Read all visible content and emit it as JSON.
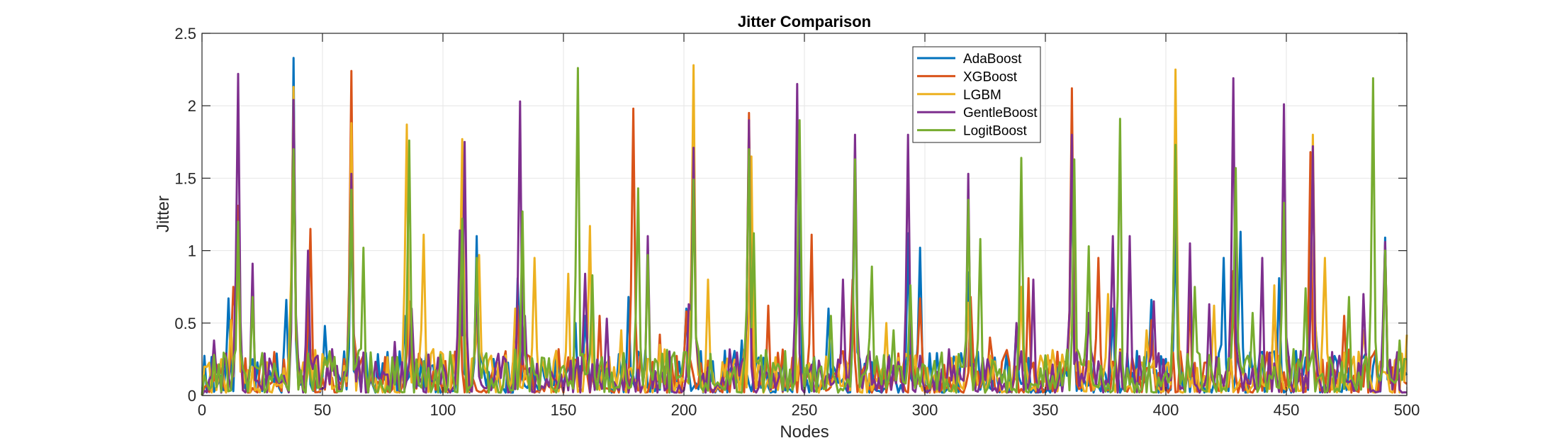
{
  "chart_data": {
    "type": "line",
    "title": "Jitter Comparison",
    "xlabel": "Nodes",
    "ylabel": "Jitter",
    "xlim": [
      0,
      500
    ],
    "ylim": [
      0,
      2.5
    ],
    "xticks": [
      0,
      50,
      100,
      150,
      200,
      250,
      300,
      350,
      400,
      450,
      500
    ],
    "yticks": [
      0,
      0.5,
      1,
      1.5,
      2,
      2.5
    ],
    "xtick_labels": [
      "0",
      "50",
      "100",
      "150",
      "200",
      "250",
      "300",
      "350",
      "400",
      "450",
      "500"
    ],
    "ytick_labels": [
      "0",
      "0.5",
      "1",
      "1.5",
      "2",
      "2.5"
    ],
    "grid": true,
    "legend_position": "top-right",
    "series": [
      {
        "name": "AdaBoost",
        "color": "#0072BD",
        "peaks": [
          [
            11,
            0.67
          ],
          [
            15,
            1.3
          ],
          [
            20,
            0.2
          ],
          [
            31,
            0.29
          ],
          [
            35,
            0.66
          ],
          [
            38,
            2.33
          ],
          [
            44,
            0.55
          ],
          [
            51,
            0.48
          ],
          [
            62,
            1.43
          ],
          [
            77,
            0.3
          ],
          [
            84,
            0.55
          ],
          [
            91,
            0.25
          ],
          [
            108,
            1.2
          ],
          [
            114,
            1.1
          ],
          [
            131,
            0.81
          ],
          [
            155,
            0.5
          ],
          [
            159,
            0.55
          ],
          [
            177,
            0.68
          ],
          [
            201,
            0.6
          ],
          [
            224,
            0.38
          ],
          [
            248,
            1.72
          ],
          [
            260,
            0.6
          ],
          [
            271,
            1.6
          ],
          [
            293,
            1.12
          ],
          [
            298,
            1.02
          ],
          [
            318,
            0.85
          ],
          [
            338,
            0.48
          ],
          [
            361,
            1.6
          ],
          [
            378,
            0.6
          ],
          [
            394,
            0.66
          ],
          [
            404,
            1.15
          ],
          [
            424,
            0.95
          ],
          [
            431,
            1.13
          ],
          [
            447,
            0.81
          ],
          [
            461,
            1.7
          ],
          [
            491,
            1.09
          ]
        ]
      },
      {
        "name": "XGBoost",
        "color": "#D95319",
        "peaks": [
          [
            13,
            0.75
          ],
          [
            15,
            1.31
          ],
          [
            30,
            0.3
          ],
          [
            38,
            2.03
          ],
          [
            45,
            1.15
          ],
          [
            62,
            2.24
          ],
          [
            86,
            0.65
          ],
          [
            107,
            0.85
          ],
          [
            131,
            0.62
          ],
          [
            165,
            0.55
          ],
          [
            179,
            1.98
          ],
          [
            190,
            0.42
          ],
          [
            201,
            0.58
          ],
          [
            227,
            1.95
          ],
          [
            235,
            0.62
          ],
          [
            253,
            1.11
          ],
          [
            270,
            0.8
          ],
          [
            298,
            0.67
          ],
          [
            319,
            0.68
          ],
          [
            327,
            0.4
          ],
          [
            343,
            0.81
          ],
          [
            361,
            2.12
          ],
          [
            372,
            0.95
          ],
          [
            394,
            0.52
          ],
          [
            410,
            0.71
          ],
          [
            428,
            0.86
          ],
          [
            445,
            0.62
          ],
          [
            460,
            1.68
          ],
          [
            474,
            0.55
          ],
          [
            491,
            1.04
          ]
        ]
      },
      {
        "name": "LGBM",
        "color": "#EDB120",
        "peaks": [
          [
            12,
            0.52
          ],
          [
            15,
            0.95
          ],
          [
            38,
            2.13
          ],
          [
            62,
            1.88
          ],
          [
            85,
            1.87
          ],
          [
            92,
            1.11
          ],
          [
            96,
            0.32
          ],
          [
            108,
            1.77
          ],
          [
            115,
            0.97
          ],
          [
            130,
            0.6
          ],
          [
            138,
            0.95
          ],
          [
            152,
            0.84
          ],
          [
            161,
            1.17
          ],
          [
            174,
            0.45
          ],
          [
            190,
            0.35
          ],
          [
            204,
            2.28
          ],
          [
            210,
            0.8
          ],
          [
            228,
            1.65
          ],
          [
            246,
            0.45
          ],
          [
            271,
            1.62
          ],
          [
            284,
            0.5
          ],
          [
            294,
            0.7
          ],
          [
            318,
            0.64
          ],
          [
            340,
            0.75
          ],
          [
            361,
            1.75
          ],
          [
            376,
            0.7
          ],
          [
            392,
            0.45
          ],
          [
            404,
            2.25
          ],
          [
            420,
            0.62
          ],
          [
            445,
            0.76
          ],
          [
            461,
            1.8
          ],
          [
            466,
            0.95
          ],
          [
            482,
            0.45
          ],
          [
            500,
            0.42
          ]
        ]
      },
      {
        "name": "GentleBoost",
        "color": "#7E2F8E",
        "peaks": [
          [
            5,
            0.38
          ],
          [
            15,
            2.22
          ],
          [
            21,
            0.91
          ],
          [
            38,
            2.04
          ],
          [
            44,
            1.0
          ],
          [
            62,
            1.53
          ],
          [
            80,
            0.37
          ],
          [
            87,
            0.6
          ],
          [
            107,
            1.14
          ],
          [
            109,
            1.75
          ],
          [
            114,
            0.75
          ],
          [
            132,
            2.03
          ],
          [
            134,
            0.55
          ],
          [
            159,
            0.84
          ],
          [
            168,
            0.53
          ],
          [
            185,
            1.1
          ],
          [
            202,
            0.63
          ],
          [
            204,
            1.71
          ],
          [
            227,
            1.9
          ],
          [
            247,
            2.15
          ],
          [
            266,
            0.8
          ],
          [
            271,
            1.8
          ],
          [
            293,
            1.8
          ],
          [
            318,
            1.53
          ],
          [
            338,
            0.5
          ],
          [
            345,
            0.8
          ],
          [
            361,
            1.8
          ],
          [
            368,
            0.57
          ],
          [
            378,
            1.1
          ],
          [
            385,
            1.1
          ],
          [
            395,
            0.65
          ],
          [
            404,
            1.56
          ],
          [
            410,
            1.05
          ],
          [
            418,
            0.63
          ],
          [
            428,
            2.19
          ],
          [
            440,
            0.95
          ],
          [
            449,
            2.01
          ],
          [
            461,
            1.72
          ],
          [
            469,
            0.3
          ],
          [
            482,
            0.7
          ],
          [
            491,
            1.06
          ]
        ]
      },
      {
        "name": "LogitBoost",
        "color": "#77AC30",
        "peaks": [
          [
            5,
            0.28
          ],
          [
            15,
            1.2
          ],
          [
            21,
            0.68
          ],
          [
            38,
            1.7
          ],
          [
            62,
            1.42
          ],
          [
            67,
            1.02
          ],
          [
            86,
            1.76
          ],
          [
            108,
            1.22
          ],
          [
            114,
            0.95
          ],
          [
            133,
            1.27
          ],
          [
            156,
            2.26
          ],
          [
            162,
            0.83
          ],
          [
            181,
            1.43
          ],
          [
            185,
            0.97
          ],
          [
            204,
            1.49
          ],
          [
            227,
            1.7
          ],
          [
            229,
            1.12
          ],
          [
            248,
            1.9
          ],
          [
            261,
            0.55
          ],
          [
            271,
            1.63
          ],
          [
            278,
            0.89
          ],
          [
            287,
            0.45
          ],
          [
            294,
            0.76
          ],
          [
            318,
            1.35
          ],
          [
            323,
            1.08
          ],
          [
            340,
            1.64
          ],
          [
            362,
            1.63
          ],
          [
            368,
            1.03
          ],
          [
            381,
            1.91
          ],
          [
            404,
            1.73
          ],
          [
            412,
            0.75
          ],
          [
            429,
            1.57
          ],
          [
            436,
            0.57
          ],
          [
            449,
            1.33
          ],
          [
            458,
            0.74
          ],
          [
            476,
            0.68
          ],
          [
            486,
            2.19
          ],
          [
            491,
            1.0
          ],
          [
            497,
            0.38
          ]
        ]
      }
    ]
  }
}
